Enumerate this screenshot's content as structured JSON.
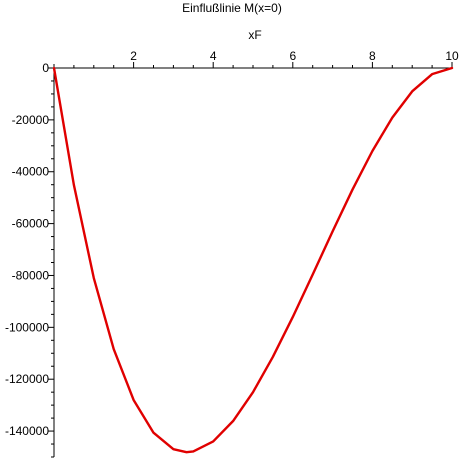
{
  "chart_data": {
    "type": "line",
    "title": "Einflußlinie M(x=0)",
    "xlabel": "xF",
    "ylabel": "",
    "xlim": [
      0,
      10
    ],
    "ylim": [
      -150000,
      0
    ],
    "x_ticks": [
      2,
      4,
      6,
      8,
      10
    ],
    "y_ticks": [
      0,
      -20000,
      -40000,
      -60000,
      -80000,
      -100000,
      -120000,
      -140000
    ],
    "grid": false,
    "legend": "none",
    "series": [
      {
        "color": "#e00000",
        "x": [
          0,
          0.5,
          1,
          1.5,
          2,
          2.5,
          3,
          3.33,
          3.5,
          4,
          4.5,
          5,
          5.5,
          6,
          6.5,
          7,
          7.5,
          8,
          8.5,
          9,
          9.5,
          10
        ],
        "y": [
          0,
          -45125,
          -81000,
          -108375,
          -128000,
          -140625,
          -147000,
          -148148,
          -147875,
          -144000,
          -136125,
          -125000,
          -111375,
          -96000,
          -79625,
          -63000,
          -46875,
          -32000,
          -19125,
          -9000,
          -2375,
          0
        ]
      }
    ]
  }
}
